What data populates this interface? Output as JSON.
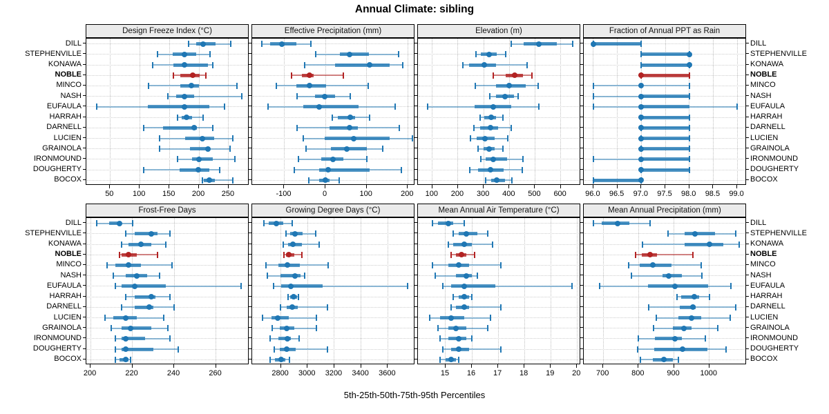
{
  "title": "Annual Climate: sibling",
  "caption": "5th-25th-50th-75th-95th Percentiles",
  "stations": [
    "DILL",
    "STEPHENVILLE",
    "KONAWA",
    "NOBLE",
    "MINCO",
    "NASH",
    "EUFAULA",
    "HARRAH",
    "DARNELL",
    "LUCIEN",
    "GRAINOLA",
    "IRONMOUND",
    "DOUGHERTY",
    "BOCOX"
  ],
  "highlight_station": "NOBLE",
  "colors": {
    "series": "#1f77b4",
    "series_light": "rgba(31,119,180,0.5)",
    "series_mid": "rgba(31,119,180,0.78)",
    "highlight": "#b22222",
    "highlight_light": "rgba(178,34,34,0.55)",
    "highlight_mid": "rgba(178,34,34,0.8)",
    "strip_bg": "#ebebeb",
    "border": "#000000",
    "gridline": "#c9c9c9"
  },
  "chart_data": [
    {
      "type": "dot-whisker",
      "title": "Design Freeze Index (°C)",
      "percentiles": [
        "5th",
        "25th",
        "50th",
        "75th",
        "95th"
      ],
      "domain": [
        10,
        285
      ],
      "ticks": [
        50,
        100,
        150,
        200,
        250
      ],
      "tick_labels": [
        "50",
        "100",
        "150",
        "200",
        "250"
      ],
      "values": {
        "DILL": [
          182,
          195,
          207,
          228,
          253
        ],
        "STEPHENVILLE": [
          130,
          156,
          175,
          195,
          218
        ],
        "KONAWA": [
          122,
          157,
          175,
          215,
          223
        ],
        "NOBLE": [
          157,
          168,
          190,
          201,
          212
        ],
        "MINCO": [
          115,
          168,
          187,
          200,
          264
        ],
        "NASH": [
          148,
          162,
          176,
          192,
          272
        ],
        "EUFAULA": [
          28,
          114,
          176,
          217,
          243
        ],
        "HARRAH": [
          164,
          171,
          179,
          188,
          207
        ],
        "DARNELL": [
          107,
          139,
          192,
          197,
          223
        ],
        "LUCIEN": [
          133,
          177,
          206,
          226,
          257
        ],
        "GRAINOLA": [
          133,
          185,
          215,
          219,
          252
        ],
        "IRONMOUND": [
          164,
          188,
          200,
          223,
          260
        ],
        "DOUGHERTY": [
          107,
          167,
          199,
          217,
          235
        ],
        "BOCOX": [
          206,
          208,
          217,
          227,
          257
        ]
      }
    },
    {
      "type": "dot-whisker",
      "title": "Effective Precipitation (mm)",
      "percentiles": [
        "5th",
        "25th",
        "50th",
        "75th",
        "95th"
      ],
      "domain": [
        -178,
        218
      ],
      "ticks": [
        -100,
        0,
        100,
        200
      ],
      "tick_labels": [
        "-100",
        "0",
        "100",
        "200"
      ],
      "values": {
        "DILL": [
          -154,
          -135,
          -106,
          -70,
          -35
        ],
        "STEPHENVILLE": [
          -24,
          35,
          58,
          106,
          177
        ],
        "KONAWA": [
          -51,
          24,
          107,
          156,
          188
        ],
        "NOBLE": [
          -83,
          -58,
          -38,
          -29,
          44
        ],
        "MINCO": [
          -120,
          -71,
          -38,
          2,
          104
        ],
        "NASH": [
          -69,
          -26,
          -2,
          24,
          60
        ],
        "EUFAULA": [
          -140,
          -53,
          -15,
          80,
          170
        ],
        "HARRAH": [
          17,
          30,
          60,
          72,
          107
        ],
        "DARNELL": [
          -69,
          10,
          58,
          78,
          179
        ],
        "LUCIEN": [
          -53,
          -1,
          68,
          156,
          212
        ],
        "GRAINOLA": [
          -47,
          13,
          52,
          100,
          139
        ],
        "IRONMOUND": [
          -66,
          -11,
          19,
          44,
          100
        ],
        "DOUGHERTY": [
          -75,
          -15,
          7,
          107,
          184
        ],
        "BOCOX": [
          -40,
          -15,
          0,
          10,
          34
        ]
      }
    },
    {
      "type": "dot-whisker",
      "title": "Elevation (m)",
      "percentiles": [
        "5th",
        "25th",
        "50th",
        "75th",
        "95th"
      ],
      "domain": [
        44,
        679
      ],
      "ticks": [
        100,
        200,
        300,
        400,
        500,
        600
      ],
      "tick_labels": [
        "100",
        "200",
        "300",
        "400",
        "500",
        "600"
      ],
      "values": {
        "DILL": [
          408,
          456,
          515,
          584,
          647
        ],
        "STEPHENVILLE": [
          270,
          288,
          320,
          351,
          387
        ],
        "KONAWA": [
          218,
          243,
          302,
          347,
          470
        ],
        "NOBLE": [
          338,
          387,
          420,
          454,
          487
        ],
        "MINCO": [
          268,
          347,
          398,
          463,
          513
        ],
        "NASH": [
          324,
          348,
          384,
          418,
          434
        ],
        "EUFAULA": [
          82,
          264,
          338,
          407,
          515
        ],
        "HARRAH": [
          286,
          302,
          330,
          347,
          375
        ],
        "DARNELL": [
          263,
          286,
          326,
          356,
          407
        ],
        "LUCIEN": [
          248,
          273,
          305,
          344,
          393
        ],
        "GRAINOLA": [
          279,
          300,
          322,
          344,
          374
        ],
        "IRONMOUND": [
          290,
          309,
          338,
          391,
          452
        ],
        "DOUGHERTY": [
          245,
          277,
          327,
          378,
          450
        ],
        "BOCOX": [
          309,
          330,
          351,
          384,
          409
        ]
      }
    },
    {
      "type": "dot-whisker",
      "title": "Fraction of Annual PPT as Rain",
      "percentiles": [
        "5th",
        "25th",
        "50th",
        "75th",
        "95th"
      ],
      "domain": [
        95.8,
        99.2
      ],
      "ticks": [
        96.0,
        96.5,
        97.0,
        97.5,
        98.0,
        98.5,
        99.0
      ],
      "tick_labels": [
        "96.0",
        "96.5",
        "97.0",
        "97.5",
        "98.0",
        "98.5",
        "99.0"
      ],
      "values": {
        "DILL": [
          96,
          96,
          96,
          97,
          97
        ],
        "STEPHENVILLE": [
          97,
          97,
          98,
          98,
          98
        ],
        "KONAWA": [
          97,
          97,
          98,
          98,
          98
        ],
        "NOBLE": [
          97,
          97,
          97,
          98,
          98
        ],
        "MINCO": [
          96,
          97,
          97,
          97,
          98
        ],
        "NASH": [
          96,
          97,
          97,
          98,
          98
        ],
        "EUFAULA": [
          96,
          97,
          97,
          98,
          99
        ],
        "HARRAH": [
          97,
          97,
          97,
          98,
          98
        ],
        "DARNELL": [
          97,
          97,
          97,
          98,
          98
        ],
        "LUCIEN": [
          97,
          97,
          97,
          98,
          98
        ],
        "GRAINOLA": [
          97,
          97,
          97,
          98,
          98
        ],
        "IRONMOUND": [
          96,
          97,
          97,
          98,
          98
        ],
        "DOUGHERTY": [
          97,
          97,
          97,
          98,
          98
        ],
        "BOCOX": [
          96,
          96,
          97,
          97,
          97
        ]
      }
    },
    {
      "type": "dot-whisker",
      "title": "Frost-Free Days",
      "percentiles": [
        "5th",
        "25th",
        "50th",
        "75th",
        "95th"
      ],
      "domain": [
        198,
        276
      ],
      "ticks": [
        200,
        220,
        240,
        260
      ],
      "tick_labels": [
        "200",
        "220",
        "240",
        "260"
      ],
      "values": {
        "DILL": [
          203,
          209,
          214,
          215,
          220
        ],
        "STEPHENVILLE": [
          217,
          221,
          229,
          232,
          238
        ],
        "KONAWA": [
          215,
          218,
          224,
          229,
          236
        ],
        "NOBLE": [
          214,
          215,
          218,
          222,
          232
        ],
        "MINCO": [
          208,
          212,
          218,
          224,
          239
        ],
        "NASH": [
          211,
          217,
          222,
          227,
          233
        ],
        "EUFAULA": [
          212,
          215,
          221,
          236,
          272
        ],
        "HARRAH": [
          217,
          221,
          229,
          231,
          238
        ],
        "DARNELL": [
          215,
          221,
          228,
          230,
          240
        ],
        "LUCIEN": [
          207,
          211,
          217,
          222,
          235
        ],
        "GRAINOLA": [
          210,
          215,
          219,
          229,
          237
        ],
        "IRONMOUND": [
          212,
          215,
          217,
          226,
          238
        ],
        "DOUGHERTY": [
          212,
          215,
          217,
          230,
          242
        ],
        "BOCOX": [
          212,
          214,
          217,
          218,
          219
        ]
      }
    },
    {
      "type": "dot-whisker",
      "title": "Growing Degree Days (°C)",
      "percentiles": [
        "5th",
        "25th",
        "50th",
        "75th",
        "95th"
      ],
      "domain": [
        2585,
        3805
      ],
      "ticks": [
        2800,
        3000,
        3200,
        3400,
        3600
      ],
      "tick_labels": [
        "2800",
        "3000",
        "3200",
        "3400",
        "3600"
      ],
      "values": {
        "DILL": [
          2675,
          2710,
          2765,
          2820,
          2885
        ],
        "STEPHENVILLE": [
          2840,
          2870,
          2903,
          2962,
          3060
        ],
        "KONAWA": [
          2817,
          2852,
          2890,
          2955,
          3088
        ],
        "NOBLE": [
          2821,
          2838,
          2860,
          2898,
          2955
        ],
        "MINCO": [
          2686,
          2783,
          2847,
          2941,
          3153
        ],
        "NASH": [
          2700,
          2795,
          2907,
          2945,
          2980
        ],
        "EUFAULA": [
          2743,
          2803,
          2876,
          3114,
          3748
        ],
        "HARRAH": [
          2852,
          2869,
          2893,
          2921,
          2933
        ],
        "DARNELL": [
          2795,
          2841,
          2886,
          2928,
          3148
        ],
        "LUCIEN": [
          2662,
          2731,
          2778,
          2859,
          3066
        ],
        "GRAINOLA": [
          2734,
          2790,
          2841,
          2903,
          3066
        ],
        "IRONMOUND": [
          2721,
          2783,
          2850,
          2876,
          2938
        ],
        "DOUGHERTY": [
          2748,
          2790,
          2843,
          2910,
          3148
        ],
        "BOCOX": [
          2721,
          2755,
          2803,
          2834,
          2864
        ]
      }
    },
    {
      "type": "dot-whisker",
      "title": "Mean Annual Air Temperature (°C)",
      "percentiles": [
        "5th",
        "25th",
        "50th",
        "75th",
        "95th"
      ],
      "domain": [
        13.95,
        20.15
      ],
      "ticks": [
        15,
        16,
        17,
        18,
        19,
        20
      ],
      "tick_labels": [
        "15",
        "16",
        "17",
        "18",
        "19",
        "20"
      ],
      "values": {
        "DILL": [
          14.5,
          14.7,
          15.1,
          15.3,
          15.7
        ],
        "STEPHENVILLE": [
          15.3,
          15.5,
          15.8,
          16.2,
          16.6
        ],
        "KONAWA": [
          15.1,
          15.3,
          15.7,
          16.0,
          16.8
        ],
        "NOBLE": [
          15.2,
          15.4,
          15.6,
          15.8,
          16.1
        ],
        "MINCO": [
          14.5,
          15.1,
          15.5,
          15.9,
          17.1
        ],
        "NASH": [
          14.6,
          15.4,
          15.8,
          16.0,
          16.2
        ],
        "EUFAULA": [
          14.9,
          15.2,
          15.7,
          16.9,
          19.8
        ],
        "HARRAH": [
          15.3,
          15.5,
          15.7,
          15.9,
          16.0
        ],
        "DARNELL": [
          15.2,
          15.4,
          15.7,
          15.9,
          17.1
        ],
        "LUCIEN": [
          14.4,
          14.8,
          15.2,
          15.7,
          16.7
        ],
        "GRAINOLA": [
          14.7,
          15.1,
          15.4,
          15.8,
          16.6
        ],
        "IRONMOUND": [
          14.8,
          15.1,
          15.5,
          15.8,
          16.0
        ],
        "DOUGHERTY": [
          14.9,
          15.2,
          15.5,
          15.9,
          17.1
        ],
        "BOCOX": [
          14.8,
          15.0,
          15.2,
          15.4,
          15.5
        ]
      }
    },
    {
      "type": "dot-whisker",
      "title": "Mean Annual Precipitation (mm)",
      "percentiles": [
        "5th",
        "25th",
        "50th",
        "75th",
        "95th"
      ],
      "domain": [
        645,
        1106
      ],
      "ticks": [
        700,
        800,
        900,
        1000
      ],
      "tick_labels": [
        "700",
        "800",
        "900",
        "1000"
      ],
      "values": {
        "DILL": [
          673,
          695,
          741,
          774,
          832
        ],
        "STEPHENVILLE": [
          884,
          930,
          960,
          1017,
          1074
        ],
        "KONAWA": [
          811,
          930,
          1000,
          1040,
          1084
        ],
        "NOBLE": [
          792,
          809,
          832,
          852,
          954
        ],
        "MINCO": [
          772,
          803,
          840,
          894,
          977
        ],
        "NASH": [
          779,
          868,
          885,
          923,
          980
        ],
        "EUFAULA": [
          689,
          827,
          902,
          996,
          1061
        ],
        "HARRAH": [
          909,
          920,
          957,
          972,
          1001
        ],
        "DARNELL": [
          829,
          917,
          954,
          962,
          1074
        ],
        "LUCIEN": [
          850,
          913,
          949,
          977,
          1060
        ],
        "GRAINOLA": [
          842,
          897,
          928,
          949,
          1024
        ],
        "IRONMOUND": [
          800,
          846,
          902,
          922,
          988
        ],
        "DOUGHERTY": [
          798,
          844,
          924,
          995,
          1048
        ],
        "BOCOX": [
          805,
          840,
          872,
          897,
          913
        ]
      }
    }
  ]
}
